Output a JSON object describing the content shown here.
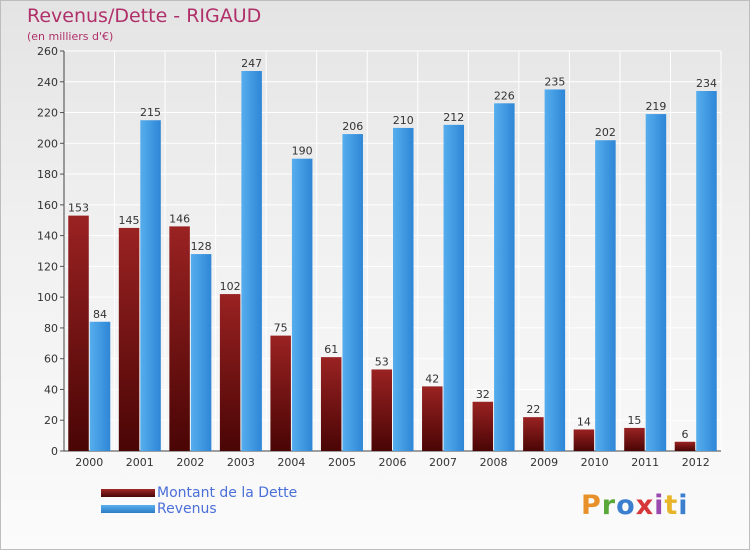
{
  "chart_data": {
    "type": "bar",
    "title": "Revenus/Dette - RIGAUD",
    "subtitle": "(en milliers d'€)",
    "categories": [
      "2000",
      "2001",
      "2002",
      "2003",
      "2004",
      "2005",
      "2006",
      "2007",
      "2008",
      "2009",
      "2010",
      "2011",
      "2012"
    ],
    "series": [
      {
        "name": "Montant de la Dette",
        "color": "#7a1414",
        "values": [
          153,
          145,
          146,
          102,
          75,
          61,
          53,
          42,
          32,
          22,
          14,
          15,
          6
        ]
      },
      {
        "name": "Revenus",
        "color": "#3b94de",
        "values": [
          84,
          215,
          128,
          247,
          190,
          206,
          210,
          212,
          226,
          235,
          202,
          219,
          234
        ]
      }
    ],
    "ylim": [
      0,
      260
    ],
    "yticks": [
      0,
      20,
      40,
      60,
      80,
      100,
      120,
      140,
      160,
      180,
      200,
      220,
      240,
      260
    ],
    "grid": true,
    "legend": "bottom-left"
  },
  "logo": {
    "text": "Proxiti"
  }
}
